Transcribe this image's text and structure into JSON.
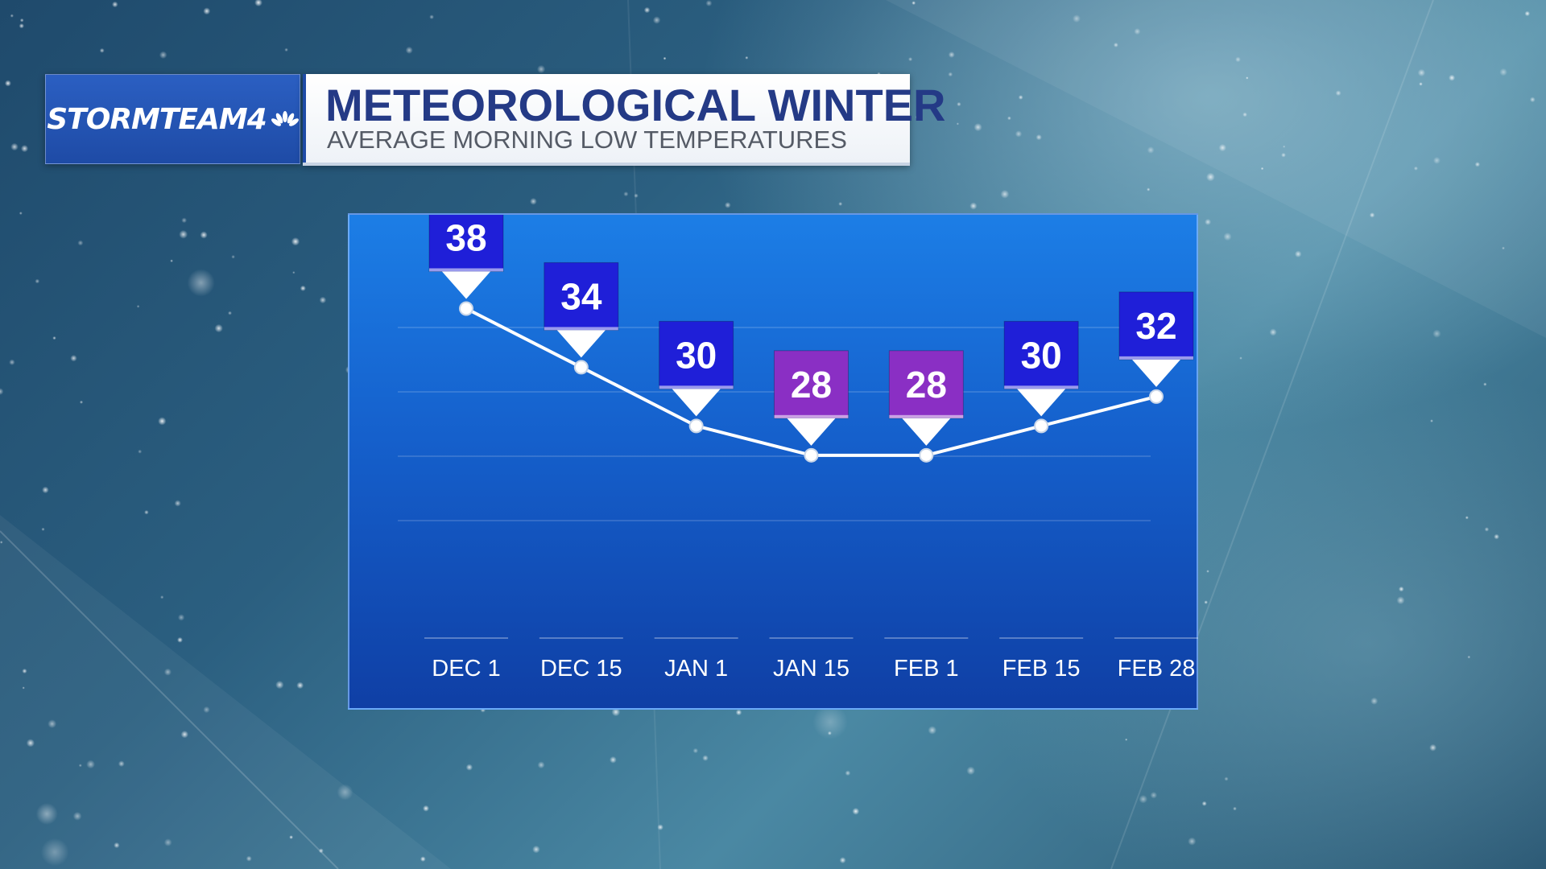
{
  "header": {
    "logo_text": "STORMTEAM4",
    "title": "METEOROLOGICAL WINTER",
    "subtitle": "AVERAGE MORNING LOW TEMPERATURES"
  },
  "chart_data": {
    "type": "line",
    "title": "METEOROLOGICAL WINTER",
    "subtitle": "AVERAGE MORNING LOW TEMPERATURES",
    "categories": [
      "DEC 1",
      "DEC 15",
      "JAN 1",
      "JAN 15",
      "FEB 1",
      "FEB 15",
      "FEB 28"
    ],
    "values": [
      38,
      34,
      30,
      28,
      28,
      30,
      32
    ],
    "xlabel": "",
    "ylabel": "",
    "ylim": [
      23,
      40
    ],
    "grid": true,
    "legend": "none",
    "label_colors": {
      "default": "#1f1fd8",
      "lowest": "#8a2fc4"
    }
  },
  "colors": {
    "panel_top": "#1c7ee6",
    "panel_bottom": "#0f3fa5",
    "title_text": "#243a86",
    "logo_bg": "#1e4ba6"
  }
}
